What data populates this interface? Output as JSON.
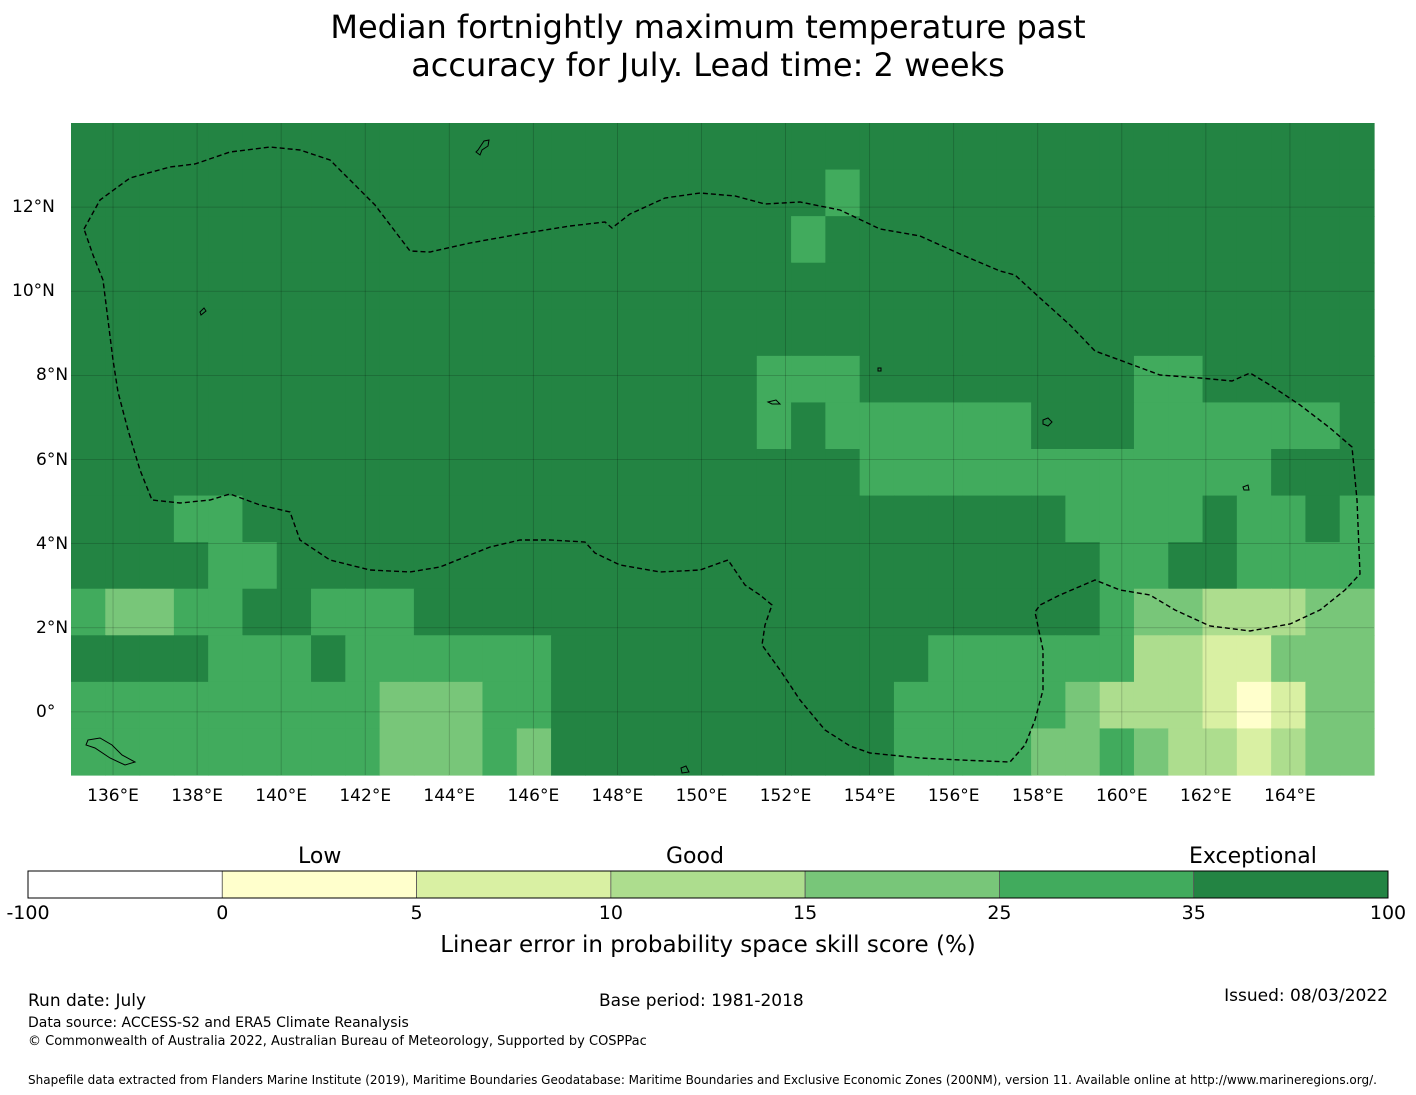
{
  "title": {
    "line1": "Median fortnightly maximum temperature past",
    "line2": "accuracy for July. Lead time: 2 weeks"
  },
  "map": {
    "lon_range": [
      135,
      166
    ],
    "lat_range": [
      -1.5,
      14
    ],
    "lon_ticks": [
      "136°E",
      "138°E",
      "140°E",
      "142°E",
      "144°E",
      "146°E",
      "148°E",
      "150°E",
      "152°E",
      "154°E",
      "156°E",
      "158°E",
      "160°E",
      "162°E",
      "164°E"
    ],
    "lat_ticks": [
      "12°N",
      "10°N",
      "8°N",
      "6°N",
      "4°N",
      "2°N",
      "0°"
    ],
    "grid_resolution_deg": 0.83,
    "grid_columns": 38,
    "grid_rows": 14,
    "score_class_grid_north_to_south": [
      "66666666666666666666666666666666666666",
      "66666666666666666666665666666666666666",
      "66666666666666666666656666666666666666",
      "66666666666666666666666666666666666666",
      "66666666666666666666666666666666666666",
      "66666666666666666666555666666665566666",
      "66666666666666666666565555556665555556",
      "66666666666666666666666555555555555666",
      "66655666666666666666666666666555565565",
      "66665566666666666666666666666655665555",
      "54455665556666666666666666666654433344",
      "66665556555555666666666665555553322444",
      "55555555544455666666666655555433321244",
      "55555555544454666666666655554454332344"
    ],
    "boundary_label": "EEZ"
  },
  "colorbar": {
    "categories": [
      "Low",
      "Good",
      "Exceptional"
    ],
    "bin_labels": [
      "-100",
      "0",
      "5",
      "10",
      "15",
      "25",
      "35",
      "100"
    ],
    "colors": [
      "#ffffff",
      "#ffffcc",
      "#d9f0a3",
      "#addd8e",
      "#78c679",
      "#41ab5d",
      "#238443"
    ],
    "label": "Linear error in probability space skill score (%)"
  },
  "footer": {
    "run_date": "Run date: July",
    "base_period": "Base period: 1981-2018",
    "issued": "Issued: 08/03/2022",
    "data_source": "Data source: ACCESS-S2 and ERA5 Climate Reanalysis",
    "copyright": "© Commonwealth of Australia 2022, Australian Bureau of Meteorology, Supported by COSPPac",
    "shapefile": "Shapefile data extracted from Flanders Marine Institute (2019), Maritime Boundaries Geodatabase: Maritime Boundaries and Exclusive Economic Zones (200NM), version 11. Available online at http://www.marineregions.org/."
  }
}
